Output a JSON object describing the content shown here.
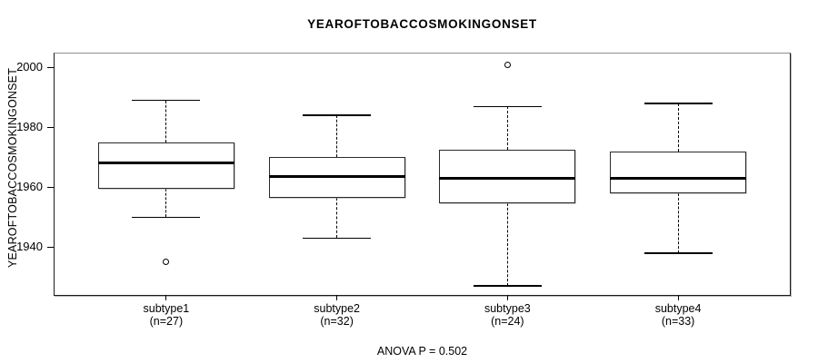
{
  "title": "YEAROFTOBACCOSMOKINGONSET",
  "footer": "ANOVA P = 0.502",
  "colors": {
    "background": "#ffffff",
    "frame": "#1a1a1a",
    "box_border": "#2a2a2a",
    "median": "#000000",
    "text": "#000000"
  },
  "chart_data": {
    "type": "boxplot",
    "title": "YEAROFTOBACCOSMOKINGONSET",
    "ylabel": "YEAROFTOBACCOSMOKINGONSET",
    "xlabel": "",
    "annotation": "ANOVA P = 0.502",
    "ylim": [
      1924,
      2005
    ],
    "yticks": [
      1940,
      1960,
      1980,
      2000
    ],
    "grid": false,
    "legend": "none",
    "groups": [
      {
        "label": "subtype1",
        "sublabel": "(n=27)",
        "n": 27,
        "whisker_low": 1950,
        "q1": 1959.5,
        "median": 1968,
        "q3": 1975,
        "whisker_high": 1989,
        "outliers": [
          1935
        ]
      },
      {
        "label": "subtype2",
        "sublabel": "(n=32)",
        "n": 32,
        "whisker_low": 1943,
        "q1": 1956.5,
        "median": 1963.5,
        "q3": 1970,
        "whisker_high": 1984,
        "outliers": []
      },
      {
        "label": "subtype3",
        "sublabel": "(n=24)",
        "n": 24,
        "whisker_low": 1927,
        "q1": 1954.5,
        "median": 1963,
        "q3": 1972.5,
        "whisker_high": 1987,
        "outliers": [
          2001
        ]
      },
      {
        "label": "subtype4",
        "sublabel": "(n=33)",
        "n": 33,
        "whisker_low": 1938,
        "q1": 1958,
        "median": 1963,
        "q3": 1972,
        "whisker_high": 1988,
        "outliers": []
      }
    ]
  }
}
